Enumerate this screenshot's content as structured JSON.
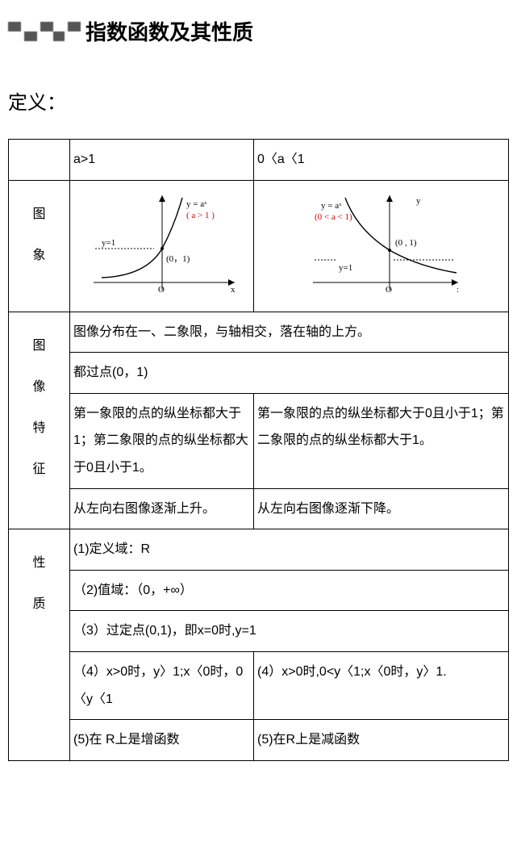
{
  "heading": {
    "title": "指数函数及其性质"
  },
  "section": {
    "label": "定义："
  },
  "table": {
    "row1": {
      "c1": "",
      "c2": "a>1",
      "c3": "0〈a〈1"
    },
    "row2": {
      "side": "图\n象",
      "chart_left": {
        "type": "exponential-increasing",
        "formula": "y = aˣ",
        "annotation": "( a > 1 )",
        "y1_label": "y=1",
        "point_label": "(0，1)",
        "formula_color": "#d00000"
      },
      "chart_right": {
        "type": "exponential-decreasing",
        "formula": "y = aˣ",
        "annotation": "(0 < a < 1)",
        "y1_label": "y=1",
        "point_label": "(0 , 1)",
        "formula_color": "#d00000"
      }
    },
    "row3": {
      "side": "图\n像\n特\n征",
      "r1": "图像分布在一、二象限，与轴相交，落在轴的上方。"
    },
    "row4": {
      "r1": "都过点(0，1)"
    },
    "row5": {
      "left": "第一象限的点的纵坐标都大于1；第二象限的点的纵坐标都大于0且小于1。",
      "right": "第一象限的点的纵坐标都大于0且小于1；第二象限的点的纵坐标都大于1。"
    },
    "row6": {
      "left": "从左向右图像逐渐上升。",
      "right": "从左向右图像逐渐下降。"
    },
    "row7": {
      "side": "性\n质",
      "r1": "(1)定义域：R"
    },
    "row8": {
      "r1": "（2)值域：（0，+∞）"
    },
    "row9": {
      "r1": "（3）过定点(0,1)，即x=0时,y=1"
    },
    "row10": {
      "left": "（4）x>0时，y〉1;x〈0时，0〈y〈1",
      "right": "(4）x>0时,0<y〈1;x〈0时，y〉1."
    },
    "row11": {
      "left": "(5)在 R上是增函数",
      "right": "(5)在R上是减函数"
    }
  },
  "colors": {
    "text": "#000000",
    "border": "#000000",
    "accent": "#d00000",
    "bg": "#ffffff"
  }
}
